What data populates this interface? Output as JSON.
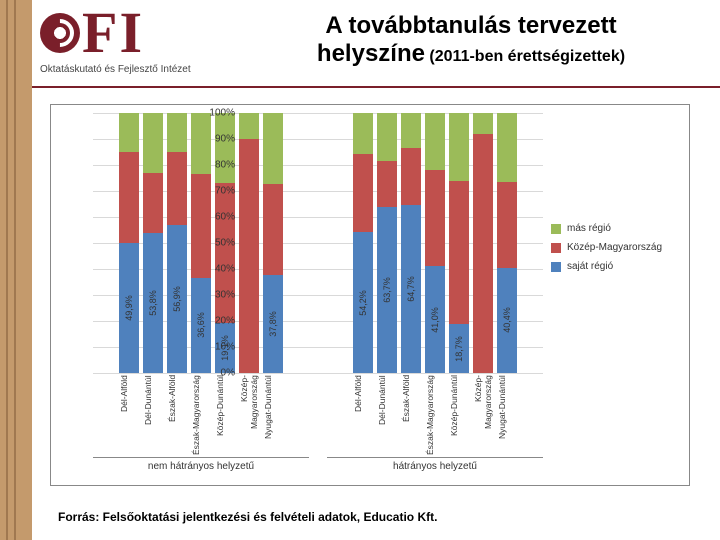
{
  "logo": {
    "sub": "Oktatáskutató és Fejlesztő Intézet"
  },
  "title": {
    "line1": "A továbbtanulás tervezett",
    "line2a": "helyszíne",
    "line2b": "(2011-ben érettségizettek)"
  },
  "chart": {
    "type": "stacked-bar",
    "background_color": "#ffffff",
    "grid_color": "#d9d9d9",
    "ylim": [
      0,
      100
    ],
    "ytick_step": 10,
    "ytick_labels": [
      "0%",
      "10%",
      "20%",
      "30%",
      "40%",
      "50%",
      "60%",
      "70%",
      "80%",
      "90%",
      "100%"
    ],
    "series": [
      {
        "name": "saját régió",
        "color": "#4f81bd"
      },
      {
        "name": "Közép-Magyarország",
        "color": "#c0504d"
      },
      {
        "name": "más régió",
        "color": "#9bbb59"
      }
    ],
    "legend_order": [
      "más régió",
      "Közép-Magyarország",
      "saját régió"
    ],
    "groups": [
      {
        "label": "nem hátrányos helyzetű",
        "categories": [
          "Dél-Alföld",
          "Dél-Dunántúl",
          "Észak-Alföld",
          "Észak-Magyarország",
          "Közép-Dunántúl",
          "Közép-Magyarország",
          "Nyugat-Dunántúl"
        ],
        "stacks": [
          {
            "sajat": 49.9,
            "kozep": 35,
            "mas": 15.1,
            "show": "49,9%"
          },
          {
            "sajat": 53.8,
            "kozep": 23,
            "mas": 23.2,
            "show": "53,8%"
          },
          {
            "sajat": 56.9,
            "kozep": 28,
            "mas": 15.1,
            "show": "56,9%"
          },
          {
            "sajat": 36.6,
            "kozep": 40,
            "mas": 23.4,
            "show": "36,6%"
          },
          {
            "sajat": 19.1,
            "kozep": 54,
            "mas": 26.9,
            "show": "19,1%"
          },
          {
            "sajat": 0,
            "kozep": 90,
            "mas": 10,
            "show": ""
          },
          {
            "sajat": 37.8,
            "kozep": 35,
            "mas": 27.2,
            "show": "37,8%"
          }
        ]
      },
      {
        "label": "hátrányos helyzetű",
        "categories": [
          "Dél-Alföld",
          "Dél-Dunántúl",
          "Észak-Alföld",
          "Észak-Magyarország",
          "Közép-Dunántúl",
          "Közép-Magyarország",
          "Nyugat-Dunántúl"
        ],
        "stacks": [
          {
            "sajat": 54.2,
            "kozep": 30,
            "mas": 15.8,
            "show": "54,2%"
          },
          {
            "sajat": 63.7,
            "kozep": 18,
            "mas": 18.3,
            "show": "63,7%"
          },
          {
            "sajat": 64.7,
            "kozep": 22,
            "mas": 13.3,
            "show": "64,7%"
          },
          {
            "sajat": 41.0,
            "kozep": 37,
            "mas": 22.0,
            "show": "41,0%"
          },
          {
            "sajat": 18.7,
            "kozep": 55,
            "mas": 26.3,
            "show": "18,7%"
          },
          {
            "sajat": 0,
            "kozep": 92,
            "mas": 8,
            "show": ""
          },
          {
            "sajat": 40.4,
            "kozep": 33,
            "mas": 26.6,
            "show": "40,4%"
          }
        ]
      }
    ]
  },
  "source": "Forrás: Felsőoktatási jelentkezési és felvételi adatok, Educatio Kft."
}
